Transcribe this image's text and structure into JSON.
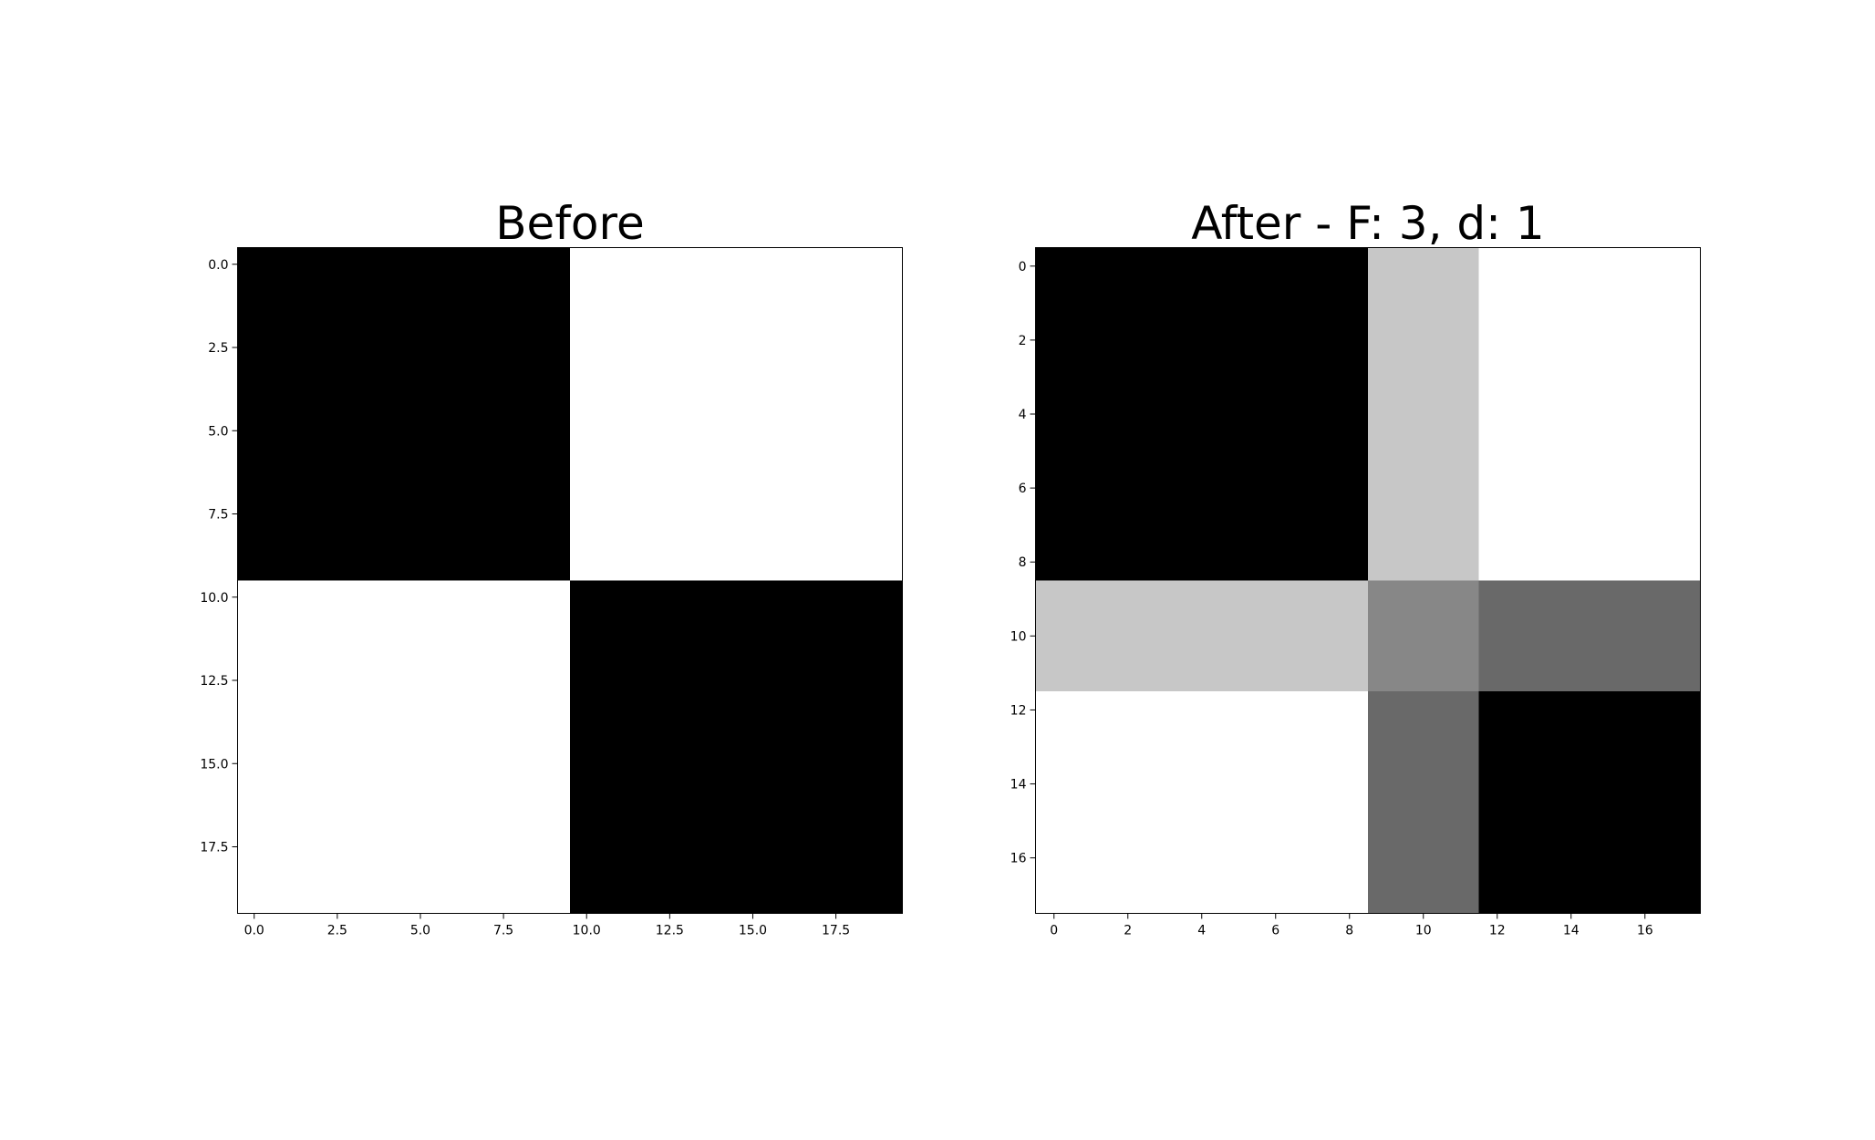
{
  "chart_data": [
    {
      "type": "heatmap",
      "title": "Before",
      "xlabel": "",
      "ylabel": "",
      "shape": [
        20,
        20
      ],
      "colormap": "gray",
      "value_range": [
        0,
        1
      ],
      "xlim": [
        -0.5,
        19.5
      ],
      "ylim": [
        19.5,
        -0.5
      ],
      "xticks": [
        0.0,
        2.5,
        5.0,
        7.5,
        10.0,
        12.5,
        15.0,
        17.5
      ],
      "xtick_labels": [
        "0.0",
        "2.5",
        "5.0",
        "7.5",
        "10.0",
        "12.5",
        "15.0",
        "17.5"
      ],
      "yticks": [
        0.0,
        2.5,
        5.0,
        7.5,
        10.0,
        12.5,
        15.0,
        17.5
      ],
      "ytick_labels": [
        "0.0",
        "2.5",
        "5.0",
        "7.5",
        "10.0",
        "12.5",
        "15.0",
        "17.5"
      ],
      "blocks": [
        {
          "rows": [
            0,
            9
          ],
          "cols": [
            0,
            9
          ],
          "value": 0
        },
        {
          "rows": [
            0,
            9
          ],
          "cols": [
            10,
            19
          ],
          "value": 1
        },
        {
          "rows": [
            10,
            19
          ],
          "cols": [
            0,
            9
          ],
          "value": 1
        },
        {
          "rows": [
            10,
            19
          ],
          "cols": [
            10,
            19
          ],
          "value": 0
        }
      ]
    },
    {
      "type": "heatmap",
      "title": "After - F: 3, d: 1",
      "xlabel": "",
      "ylabel": "",
      "shape": [
        18,
        18
      ],
      "colormap": "gray",
      "value_range": [
        0,
        1
      ],
      "xlim": [
        -0.5,
        17.5
      ],
      "ylim": [
        17.5,
        -0.5
      ],
      "xticks": [
        0,
        2,
        4,
        6,
        8,
        10,
        12,
        14,
        16
      ],
      "xtick_labels": [
        "0",
        "2",
        "4",
        "6",
        "8",
        "10",
        "12",
        "14",
        "16"
      ],
      "yticks": [
        0,
        2,
        4,
        6,
        8,
        10,
        12,
        14,
        16
      ],
      "ytick_labels": [
        "0",
        "2",
        "4",
        "6",
        "8",
        "10",
        "12",
        "14",
        "16"
      ],
      "blocks": [
        {
          "rows": [
            0,
            8
          ],
          "cols": [
            0,
            8
          ],
          "value": 0
        },
        {
          "rows": [
            0,
            8
          ],
          "cols": [
            9,
            11
          ],
          "value": 0.78
        },
        {
          "rows": [
            0,
            8
          ],
          "cols": [
            12,
            17
          ],
          "value": 1
        },
        {
          "rows": [
            9,
            11
          ],
          "cols": [
            0,
            8
          ],
          "value": 0.78
        },
        {
          "rows": [
            9,
            11
          ],
          "cols": [
            9,
            11
          ],
          "value": 0.53
        },
        {
          "rows": [
            9,
            11
          ],
          "cols": [
            12,
            17
          ],
          "value": 0.41
        },
        {
          "rows": [
            12,
            17
          ],
          "cols": [
            0,
            8
          ],
          "value": 1
        },
        {
          "rows": [
            12,
            17
          ],
          "cols": [
            9,
            11
          ],
          "value": 0.41
        },
        {
          "rows": [
            12,
            17
          ],
          "cols": [
            12,
            17
          ],
          "value": 0
        }
      ]
    }
  ]
}
